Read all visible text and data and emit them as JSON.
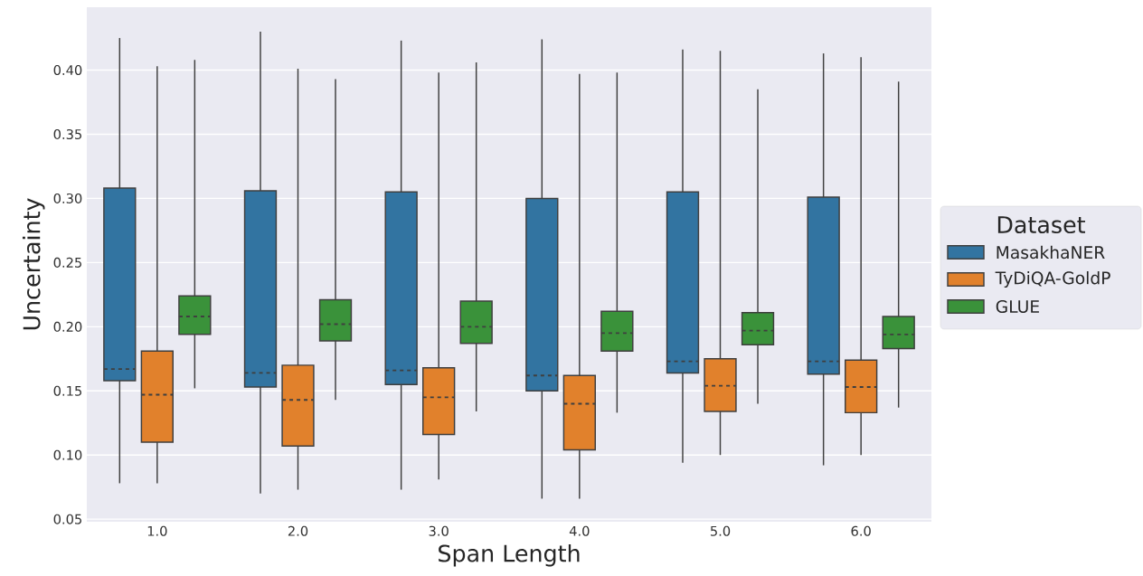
{
  "chart_data": {
    "type": "box",
    "xlabel": "Span Length",
    "ylabel": "Uncertainty",
    "legend_title": "Dataset",
    "legend": "right",
    "grid": "y",
    "categories": [
      "1.0",
      "2.0",
      "3.0",
      "4.0",
      "5.0",
      "6.0"
    ],
    "ylim": [
      0.048,
      0.449
    ],
    "yticks": [
      {
        "value": 0.05,
        "label": "0.05"
      },
      {
        "value": 0.1,
        "label": "0.10"
      },
      {
        "value": 0.15,
        "label": "0.15"
      },
      {
        "value": 0.2,
        "label": "0.20"
      },
      {
        "value": 0.25,
        "label": "0.25"
      },
      {
        "value": 0.3,
        "label": "0.30"
      },
      {
        "value": 0.35,
        "label": "0.35"
      },
      {
        "value": 0.4,
        "label": "0.40"
      }
    ],
    "series": [
      {
        "name": "MasakhaNER",
        "color": "#3274a1",
        "boxes": [
          {
            "low": 0.078,
            "q1": 0.158,
            "median": 0.167,
            "q3": 0.308,
            "high": 0.425
          },
          {
            "low": 0.07,
            "q1": 0.153,
            "median": 0.164,
            "q3": 0.306,
            "high": 0.43
          },
          {
            "low": 0.073,
            "q1": 0.155,
            "median": 0.166,
            "q3": 0.305,
            "high": 0.423
          },
          {
            "low": 0.066,
            "q1": 0.15,
            "median": 0.162,
            "q3": 0.3,
            "high": 0.424
          },
          {
            "low": 0.094,
            "q1": 0.164,
            "median": 0.173,
            "q3": 0.305,
            "high": 0.416
          },
          {
            "low": 0.092,
            "q1": 0.163,
            "median": 0.173,
            "q3": 0.301,
            "high": 0.413
          }
        ]
      },
      {
        "name": "TyDiQA-GoldP",
        "color": "#e1812c",
        "boxes": [
          {
            "low": 0.078,
            "q1": 0.11,
            "median": 0.147,
            "q3": 0.181,
            "high": 0.403
          },
          {
            "low": 0.073,
            "q1": 0.107,
            "median": 0.143,
            "q3": 0.17,
            "high": 0.401
          },
          {
            "low": 0.081,
            "q1": 0.116,
            "median": 0.145,
            "q3": 0.168,
            "high": 0.398
          },
          {
            "low": 0.066,
            "q1": 0.104,
            "median": 0.14,
            "q3": 0.162,
            "high": 0.397
          },
          {
            "low": 0.1,
            "q1": 0.134,
            "median": 0.154,
            "q3": 0.175,
            "high": 0.415
          },
          {
            "low": 0.1,
            "q1": 0.133,
            "median": 0.153,
            "q3": 0.174,
            "high": 0.41
          }
        ]
      },
      {
        "name": "GLUE",
        "color": "#3a923a",
        "boxes": [
          {
            "low": 0.152,
            "q1": 0.194,
            "median": 0.208,
            "q3": 0.224,
            "high": 0.408
          },
          {
            "low": 0.143,
            "q1": 0.189,
            "median": 0.202,
            "q3": 0.221,
            "high": 0.393
          },
          {
            "low": 0.134,
            "q1": 0.187,
            "median": 0.2,
            "q3": 0.22,
            "high": 0.406
          },
          {
            "low": 0.133,
            "q1": 0.181,
            "median": 0.195,
            "q3": 0.212,
            "high": 0.398
          },
          {
            "low": 0.14,
            "q1": 0.186,
            "median": 0.197,
            "q3": 0.211,
            "high": 0.385
          },
          {
            "low": 0.137,
            "q1": 0.183,
            "median": 0.194,
            "q3": 0.208,
            "high": 0.391
          }
        ]
      }
    ]
  }
}
